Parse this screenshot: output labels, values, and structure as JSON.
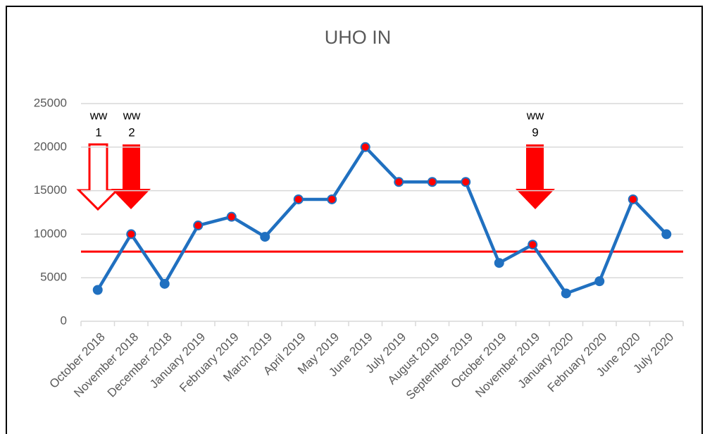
{
  "chart_data": {
    "type": "line",
    "title": "UHO IN",
    "categories": [
      "October 2018",
      "November 2018",
      "December 2018",
      "January 2019",
      "February 2019",
      "March 2019",
      "April 2019",
      "May 2019",
      "June 2019",
      "July 2019",
      "August 2019",
      "September 2019",
      "October 2019",
      "November 2019",
      "January 2020",
      "February 2020",
      "June 2020",
      "July 2020"
    ],
    "series": [
      {
        "name": "UHO IN",
        "color": "#2070c0",
        "values": [
          3600,
          10000,
          4300,
          11000,
          12000,
          9700,
          14000,
          14000,
          20000,
          16000,
          16000,
          16000,
          6700,
          8800,
          3200,
          4600,
          14000,
          10000
        ],
        "marker_colors": [
          "#2070c0",
          "#ff0000",
          "#2070c0",
          "#ff0000",
          "#ff0000",
          "#2070c0",
          "#ff0000",
          "#ff0000",
          "#ff0000",
          "#ff0000",
          "#ff0000",
          "#ff0000",
          "#2070c0",
          "#ff0000",
          "#2070c0",
          "#2070c0",
          "#ff0000",
          "#2070c0"
        ]
      }
    ],
    "reference_line": {
      "value": 8000,
      "color": "#ff0000"
    },
    "annotations": [
      {
        "lines": [
          "ww",
          "1"
        ]
      },
      {
        "lines": [
          "ww",
          "2"
        ]
      },
      {
        "lines": [
          "ww",
          "9"
        ]
      }
    ],
    "ylim": [
      0,
      25000
    ],
    "yticks": [
      0,
      5000,
      10000,
      15000,
      20000,
      25000
    ],
    "grid": true
  }
}
